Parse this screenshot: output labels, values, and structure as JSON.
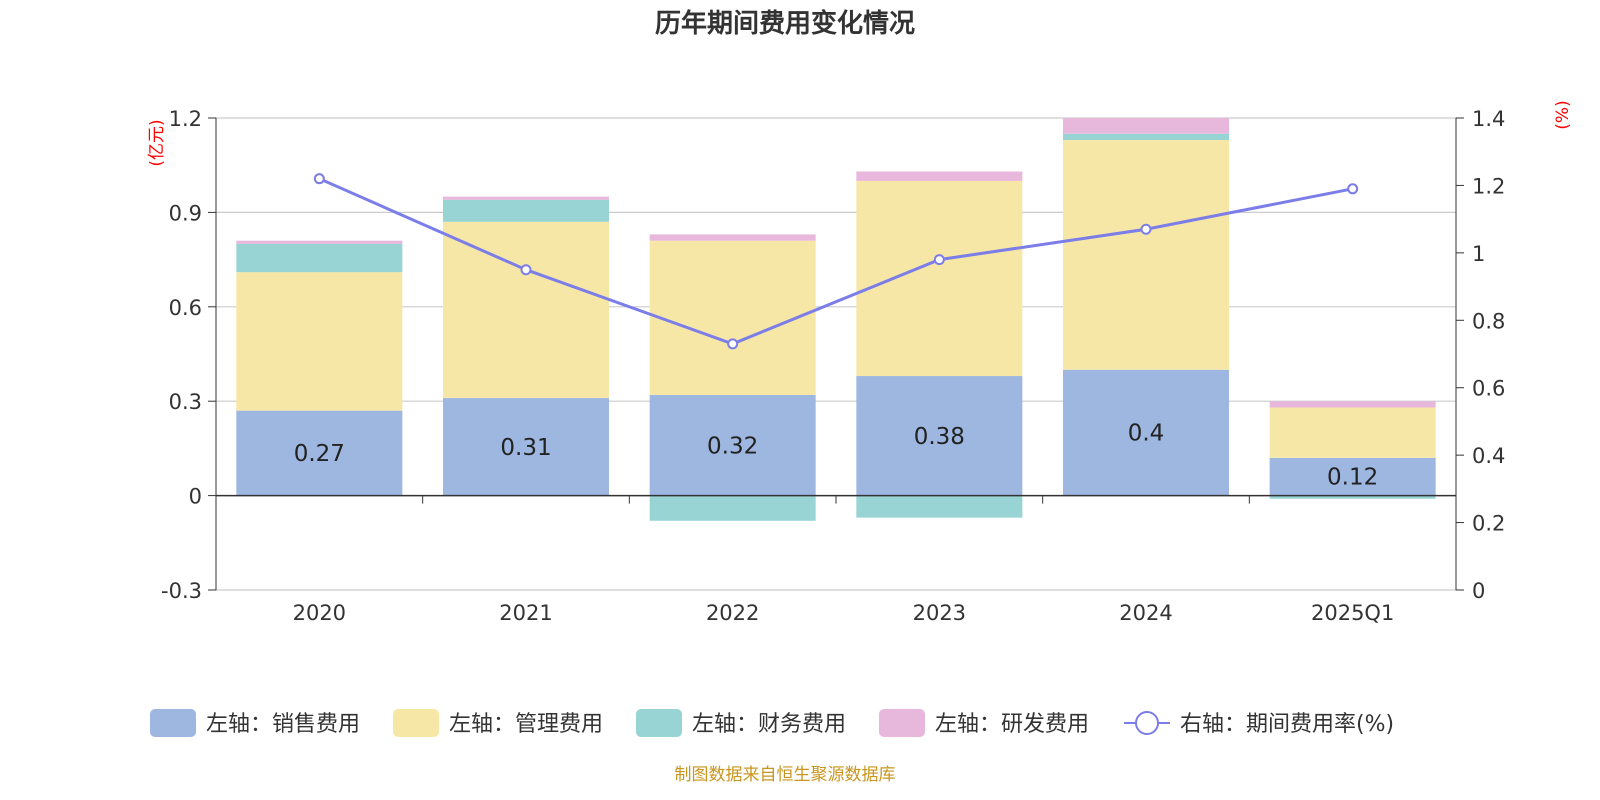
{
  "chart_data": {
    "type": "bar",
    "stacked": true,
    "title": "历年期间费用变化情况",
    "categories": [
      "2020",
      "2021",
      "2022",
      "2023",
      "2024",
      "2025Q1"
    ],
    "left_axis": {
      "unit": "(亿元)",
      "ylim": [
        -0.3,
        1.2
      ],
      "ticks": [
        "-0.3",
        "0",
        "0.3",
        "0.6",
        "0.9",
        "1.2"
      ]
    },
    "right_axis": {
      "unit": "(%)",
      "ylim": [
        0,
        1.4
      ],
      "ticks": [
        "0",
        "0.2",
        "0.4",
        "0.6",
        "0.8",
        "1",
        "1.2",
        "1.4"
      ]
    },
    "series": [
      {
        "name": "左轴：销售费用",
        "type": "bar",
        "axis": "left",
        "color": "#9db7e0",
        "values": [
          0.27,
          0.31,
          0.32,
          0.38,
          0.4,
          0.12
        ],
        "labels": [
          "0.27",
          "0.31",
          "0.32",
          "0.38",
          "0.4",
          "0.12"
        ]
      },
      {
        "name": "左轴：管理费用",
        "type": "bar",
        "axis": "left",
        "color": "#f7e7a7",
        "values": [
          0.44,
          0.56,
          0.49,
          0.62,
          0.73,
          0.16
        ]
      },
      {
        "name": "左轴：财务费用",
        "type": "bar",
        "axis": "left",
        "color": "#98d4d4",
        "values": [
          0.09,
          0.07,
          -0.08,
          -0.07,
          0.02,
          -0.01
        ]
      },
      {
        "name": "左轴：研发费用",
        "type": "bar",
        "axis": "left",
        "color": "#e8b8dc",
        "values": [
          0.01,
          0.01,
          0.02,
          0.03,
          0.05,
          0.02
        ]
      },
      {
        "name": "右轴：期间费用率(%)",
        "type": "line",
        "axis": "right",
        "color": "#7b7de8",
        "values": [
          1.22,
          0.95,
          0.73,
          0.98,
          1.07,
          1.19
        ]
      }
    ],
    "legend_position": "bottom",
    "grid": true
  },
  "footer": {
    "source": "制图数据来自恒生聚源数据库"
  }
}
